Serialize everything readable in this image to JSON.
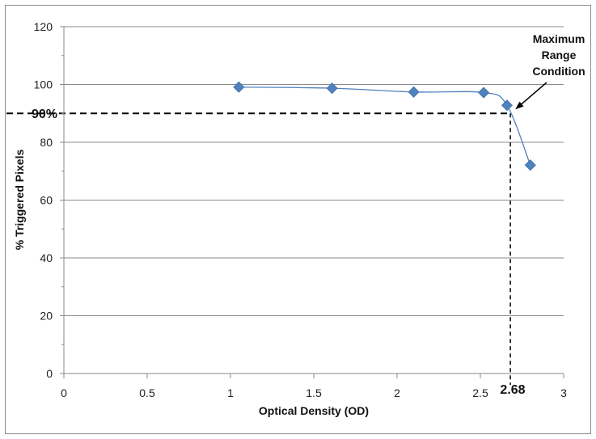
{
  "chart_data": {
    "type": "scatter",
    "title": "",
    "xlabel": "Optical Density (OD)",
    "ylabel": "% Triggered Pixels",
    "xlim": [
      0,
      3
    ],
    "ylim": [
      0,
      120
    ],
    "x_ticks": [
      "0",
      "0.5",
      "1",
      "1.5",
      "2",
      "2.5",
      "3"
    ],
    "y_ticks": [
      "0",
      "20",
      "40",
      "60",
      "80",
      "100",
      "120"
    ],
    "grid": "horizontal",
    "marker_color": "#4f81bd",
    "line_color": "#4f81bd",
    "series": [
      {
        "x": [
          1.05,
          1.61,
          2.1,
          2.52,
          2.66,
          2.8
        ],
        "y": [
          99.1,
          98.7,
          97.4,
          97.2,
          92.8,
          72.1
        ]
      }
    ],
    "annotations": {
      "callout": [
        "Maximum",
        "Range",
        "Condition"
      ],
      "threshold_y_label": "90%",
      "threshold_x_label": "2.68",
      "threshold_y": 90,
      "threshold_x": 2.68,
      "arrow_target": [
        2.7,
        90.5
      ]
    }
  }
}
